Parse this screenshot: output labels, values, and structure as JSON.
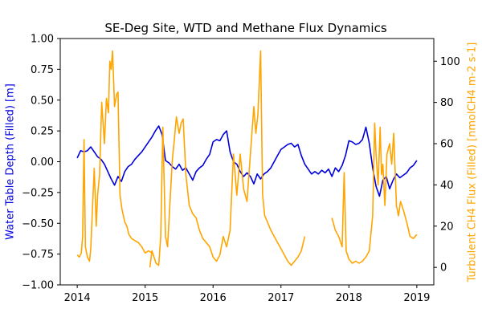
{
  "chart_data": {
    "type": "line",
    "title": "SE-Deg Site, WTD and Methane Flux Dynamics",
    "x_axis": {
      "range": [
        2013.75,
        2019.25
      ],
      "ticks": [
        2014,
        2015,
        2016,
        2017,
        2018,
        2019
      ],
      "tick_labels": [
        "2014",
        "2015",
        "2016",
        "2017",
        "2018",
        "2019"
      ]
    },
    "y_left": {
      "label": "Water Table Depth (Filled) [m]",
      "color": "#0000dd",
      "range": [
        -1.0,
        1.0
      ],
      "ticks": [
        -1.0,
        -0.75,
        -0.5,
        -0.25,
        0.0,
        0.25,
        0.5,
        0.75,
        1.0
      ],
      "tick_labels": [
        "−1.00",
        "−0.75",
        "−0.50",
        "−0.25",
        "0.00",
        "0.25",
        "0.50",
        "0.75",
        "1.00"
      ]
    },
    "y_right": {
      "label": "Turbulent CH4 Flux (Filled) [nmolCH4 m-2 s-1]",
      "color": "#ffa500",
      "range": [
        -8.5,
        111
      ],
      "ticks": [
        0,
        20,
        40,
        60,
        80,
        100
      ],
      "tick_labels": [
        "0",
        "20",
        "40",
        "60",
        "80",
        "100"
      ]
    },
    "series": [
      {
        "axis": "left",
        "color": "#0000dd",
        "x": [
          2014.0,
          2014.05,
          2014.1,
          2014.15,
          2014.2,
          2014.25,
          2014.3,
          2014.35,
          2014.4,
          2014.45,
          2014.5,
          2014.55,
          2014.6,
          2014.65,
          2014.7,
          2014.75,
          2014.8,
          2014.85,
          2014.9,
          2014.95,
          2015.0,
          2015.05,
          2015.1,
          2015.15,
          2015.2,
          2015.25,
          2015.3,
          2015.35,
          2015.4,
          2015.45,
          2015.5,
          2015.55,
          2015.6,
          2015.65,
          2015.7,
          2015.75,
          2015.8,
          2015.85,
          2015.9,
          2015.95,
          2016.0,
          2016.05,
          2016.1,
          2016.15,
          2016.2,
          2016.25,
          2016.3,
          2016.35,
          2016.4,
          2016.45,
          2016.5,
          2016.55,
          2016.6,
          2016.65,
          2016.7,
          2016.75,
          2016.8,
          2016.85,
          2016.9,
          2016.95,
          2017.0,
          2017.05,
          2017.1,
          2017.15,
          2017.2,
          2017.25,
          2017.3,
          2017.35,
          2017.4,
          2017.45,
          2017.5,
          2017.55,
          2017.6,
          2017.65,
          2017.7,
          2017.75,
          2017.8,
          2017.85,
          2017.9,
          2017.95,
          2018.0,
          2018.05,
          2018.1,
          2018.15,
          2018.2,
          2018.25,
          2018.3,
          2018.35,
          2018.4,
          2018.45,
          2018.5,
          2018.55,
          2018.6,
          2018.65,
          2018.7,
          2018.75,
          2018.8,
          2018.85,
          2018.9,
          2018.95,
          2019.0
        ],
        "y": [
          0.03,
          0.09,
          0.08,
          0.09,
          0.12,
          0.08,
          0.04,
          0.02,
          -0.02,
          -0.08,
          -0.14,
          -0.19,
          -0.12,
          -0.16,
          -0.08,
          -0.04,
          -0.02,
          0.02,
          0.05,
          0.08,
          0.12,
          0.16,
          0.2,
          0.25,
          0.29,
          0.22,
          0.01,
          -0.01,
          -0.04,
          -0.06,
          -0.02,
          -0.07,
          -0.05,
          -0.1,
          -0.15,
          -0.08,
          -0.05,
          -0.03,
          0.02,
          0.06,
          0.16,
          0.18,
          0.17,
          0.22,
          0.25,
          0.08,
          0.0,
          -0.02,
          -0.08,
          -0.12,
          -0.09,
          -0.12,
          -0.18,
          -0.1,
          -0.14,
          -0.1,
          -0.08,
          -0.05,
          0.0,
          0.05,
          0.1,
          0.12,
          0.14,
          0.15,
          0.12,
          0.14,
          0.05,
          -0.02,
          -0.06,
          -0.1,
          -0.08,
          -0.1,
          -0.07,
          -0.09,
          -0.06,
          -0.12,
          -0.05,
          -0.08,
          -0.03,
          0.05,
          0.17,
          0.16,
          0.14,
          0.15,
          0.18,
          0.28,
          0.15,
          -0.05,
          -0.2,
          -0.28,
          -0.15,
          -0.12,
          -0.22,
          -0.15,
          -0.1,
          -0.13,
          -0.11,
          -0.09,
          -0.05,
          -0.03,
          0.01
        ]
      },
      {
        "axis": "right",
        "color": "#ffa500",
        "segments": [
          {
            "x": [
              2014.0,
              2014.03,
              2014.06,
              2014.08,
              2014.1,
              2014.12,
              2014.15,
              2014.18,
              2014.2,
              2014.22,
              2014.25,
              2014.28,
              2014.3,
              2014.33,
              2014.36,
              2014.4,
              2014.43,
              2014.46,
              2014.48,
              2014.5,
              2014.52,
              2014.55,
              2014.58,
              2014.6,
              2014.63,
              2014.66,
              2014.7,
              2014.73,
              2014.76,
              2014.8,
              2014.85,
              2014.9,
              2014.95,
              2015.0,
              2015.05,
              2015.1
            ],
            "y": [
              6,
              5,
              7,
              15,
              62,
              10,
              5,
              3,
              9,
              25,
              48,
              20,
              35,
              45,
              80,
              60,
              82,
              75,
              100,
              96,
              105,
              78,
              84,
              85,
              35,
              28,
              22,
              20,
              16,
              14,
              13,
              12,
              10,
              7,
              8,
              7
            ]
          },
          {
            "x": [
              2015.07,
              2015.1,
              2015.13,
              2015.16,
              2015.2,
              2015.23,
              2015.26,
              2015.3,
              2015.33,
              2015.36,
              2015.4,
              2015.43,
              2015.46,
              2015.5,
              2015.53,
              2015.56,
              2015.6,
              2015.65,
              2015.7,
              2015.75,
              2015.8,
              2015.85,
              2015.9,
              2015.95,
              2016.0,
              2016.05,
              2016.1,
              2016.15,
              2016.2,
              2016.25,
              2016.3,
              2016.35,
              2016.4,
              2016.45,
              2016.5,
              2016.55,
              2016.6,
              2016.63,
              2016.66,
              2016.7,
              2016.73,
              2016.76,
              2016.8,
              2016.85,
              2016.9,
              2016.95,
              2017.0,
              2017.05,
              2017.1,
              2017.15,
              2017.2,
              2017.25,
              2017.3,
              2017.35
            ],
            "y": [
              0,
              8,
              5,
              2,
              1,
              15,
              68,
              15,
              10,
              28,
              52,
              62,
              73,
              65,
              70,
              72,
              45,
              30,
              26,
              24,
              18,
              14,
              12,
              10,
              5,
              3,
              6,
              15,
              10,
              18,
              55,
              35,
              55,
              38,
              32,
              55,
              78,
              65,
              74,
              105,
              35,
              25,
              22,
              18,
              15,
              12,
              9,
              6,
              3,
              1,
              3,
              5,
              8,
              15
            ]
          },
          {
            "x": [
              2017.75,
              2017.8,
              2017.85,
              2017.9,
              2017.93,
              2017.96,
              2018.0,
              2018.05,
              2018.1,
              2018.15,
              2018.2,
              2018.25,
              2018.3,
              2018.35,
              2018.38,
              2018.4,
              2018.43,
              2018.46,
              2018.48,
              2018.5,
              2018.53,
              2018.56,
              2018.6,
              2018.63,
              2018.66,
              2018.7,
              2018.73,
              2018.76,
              2018.8,
              2018.85,
              2018.9,
              2018.95,
              2019.0
            ],
            "y": [
              24,
              18,
              15,
              10,
              46,
              8,
              4,
              2,
              3,
              2,
              3,
              5,
              8,
              25,
              70,
              55,
              40,
              68,
              45,
              50,
              30,
              55,
              60,
              50,
              65,
              30,
              25,
              32,
              28,
              22,
              15,
              14,
              16
            ]
          }
        ]
      }
    ]
  }
}
